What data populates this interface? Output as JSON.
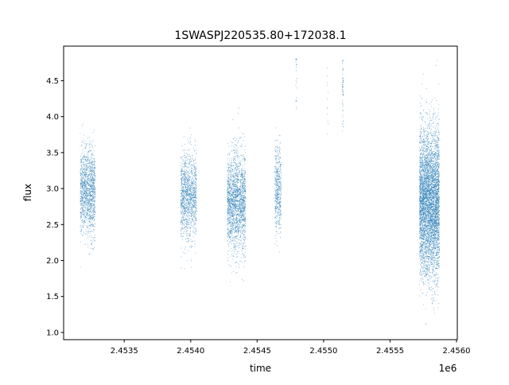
{
  "chart_data": {
    "type": "scatter",
    "title": "1SWASPJ220535.80+172038.1",
    "xlabel": "time",
    "ylabel": "flux",
    "x_offset_label": "1e6",
    "xlim": [
      2453044,
      2456006
    ],
    "ylim": [
      0.9,
      4.98
    ],
    "xticks": [
      2453500,
      2454000,
      2454500,
      2455000,
      2455500,
      2456000
    ],
    "xtick_labels": [
      "2.4535",
      "2.4540",
      "2.4545",
      "2.4550",
      "2.4555",
      "2.4560"
    ],
    "yticks": [
      1.0,
      1.5,
      2.0,
      2.5,
      3.0,
      3.5,
      4.0,
      4.5
    ],
    "ytick_labels": [
      "1.0",
      "1.5",
      "2.0",
      "2.5",
      "3.0",
      "3.5",
      "4.0",
      "4.5"
    ],
    "grid": false,
    "marker_color": "#1f77b4",
    "point_groups": [
      {
        "x_range": [
          2453169,
          2453282
        ],
        "mean": 2.95,
        "sd": 0.3,
        "min": 1.37,
        "max": 4.5,
        "count": 1400
      },
      {
        "x_range": [
          2453925,
          2454044
        ],
        "mean": 2.9,
        "sd": 0.3,
        "min": 1.3,
        "max": 4.75,
        "count": 1300
      },
      {
        "x_range": [
          2454276,
          2454413
        ],
        "mean": 2.8,
        "sd": 0.35,
        "min": 1.4,
        "max": 4.35,
        "count": 2000
      },
      {
        "x_range": [
          2454633,
          2454681
        ],
        "mean": 3.0,
        "sd": 0.3,
        "min": 1.2,
        "max": 3.9,
        "count": 500
      },
      {
        "x_range": [
          2454790,
          2454798
        ],
        "mean": 4.5,
        "sd": 0.25,
        "min": 3.9,
        "max": 4.8,
        "count": 25
      },
      {
        "x_range": [
          2455026,
          2455036
        ],
        "mean": 4.1,
        "sd": 0.3,
        "min": 3.6,
        "max": 4.7,
        "count": 12
      },
      {
        "x_range": [
          2455140,
          2455150
        ],
        "mean": 4.4,
        "sd": 0.3,
        "min": 3.5,
        "max": 4.78,
        "count": 60
      },
      {
        "x_range": [
          2455722,
          2455871
        ],
        "mean": 2.8,
        "sd": 0.5,
        "min": 1.12,
        "max": 4.78,
        "count": 5000
      }
    ]
  }
}
